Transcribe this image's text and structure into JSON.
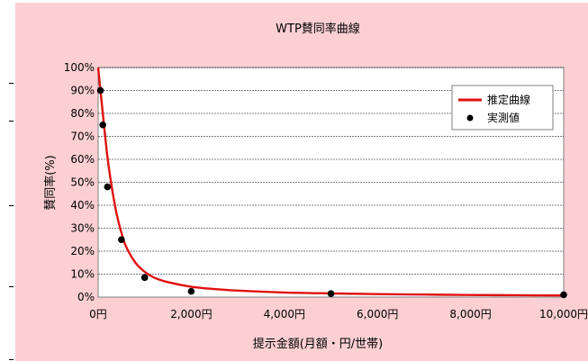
{
  "chart_data": {
    "type": "line",
    "title": "WTP賛同率曲線",
    "xlabel": "提示金額(月額・円/世帯)",
    "ylabel": "賛同率(%)",
    "xlim": [
      0,
      10000
    ],
    "ylim": [
      0,
      100
    ],
    "x_ticks": [
      0,
      2000,
      4000,
      6000,
      8000,
      10000
    ],
    "x_tick_labels": [
      "0円",
      "2,000円",
      "4,000円",
      "6,000円",
      "8,000円",
      "10,000円"
    ],
    "y_ticks": [
      0,
      10,
      20,
      30,
      40,
      50,
      60,
      70,
      80,
      90,
      100
    ],
    "y_tick_labels": [
      "0%",
      "10%",
      "20%",
      "30%",
      "40%",
      "50%",
      "60%",
      "70%",
      "80%",
      "90%",
      "100%"
    ],
    "grid": "horizontal-dashed",
    "legend_position": "top-right",
    "series": [
      {
        "name": "推定曲線",
        "kind": "line",
        "color": "#e01010",
        "x": [
          0,
          100,
          200,
          300,
          400,
          500,
          600,
          800,
          1000,
          1200,
          1500,
          2000,
          2500,
          3000,
          4000,
          5000,
          6000,
          7000,
          8000,
          9000,
          10000
        ],
        "y": [
          100,
          80,
          61,
          47,
          36,
          28,
          22,
          15,
          11,
          8.5,
          6.5,
          4.5,
          3.5,
          2.8,
          2.0,
          1.6,
          1.3,
          1.1,
          0.9,
          0.8,
          0.7
        ]
      },
      {
        "name": "実測値",
        "kind": "scatter",
        "color": "#000000",
        "x": [
          50,
          100,
          200,
          500,
          1000,
          2000,
          5000,
          10000
        ],
        "y": [
          90,
          75,
          48,
          25,
          8.5,
          2.5,
          1.5,
          1
        ]
      }
    ]
  }
}
